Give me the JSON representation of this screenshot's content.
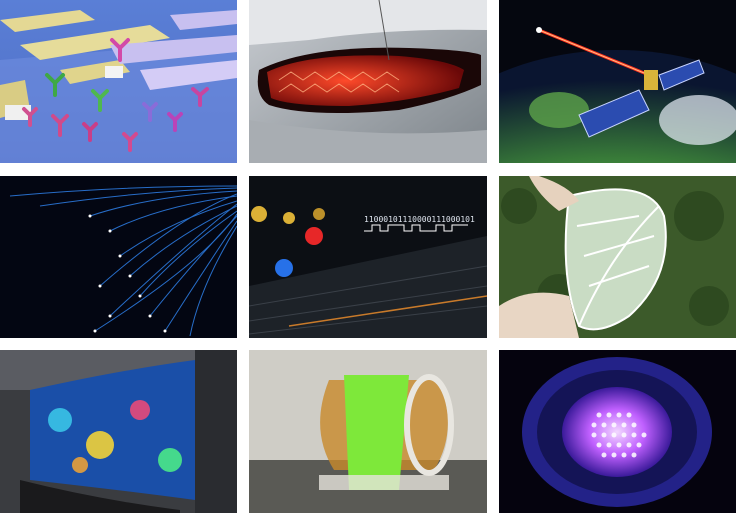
{
  "collage": {
    "tiles": [
      {
        "name": "biosensor-antibody-surface"
      },
      {
        "name": "car-oled-tail-light"
      },
      {
        "name": "satellite-laser-communication"
      },
      {
        "name": "optical-fiber-bundle"
      },
      {
        "name": "visible-light-data-transmission",
        "binary_text": "11000101110000111000101"
      },
      {
        "name": "flexible-solar-leaf"
      },
      {
        "name": "curved-oled-display"
      },
      {
        "name": "flexible-bent-display-film"
      },
      {
        "name": "uv-led-array-lamp"
      }
    ]
  }
}
